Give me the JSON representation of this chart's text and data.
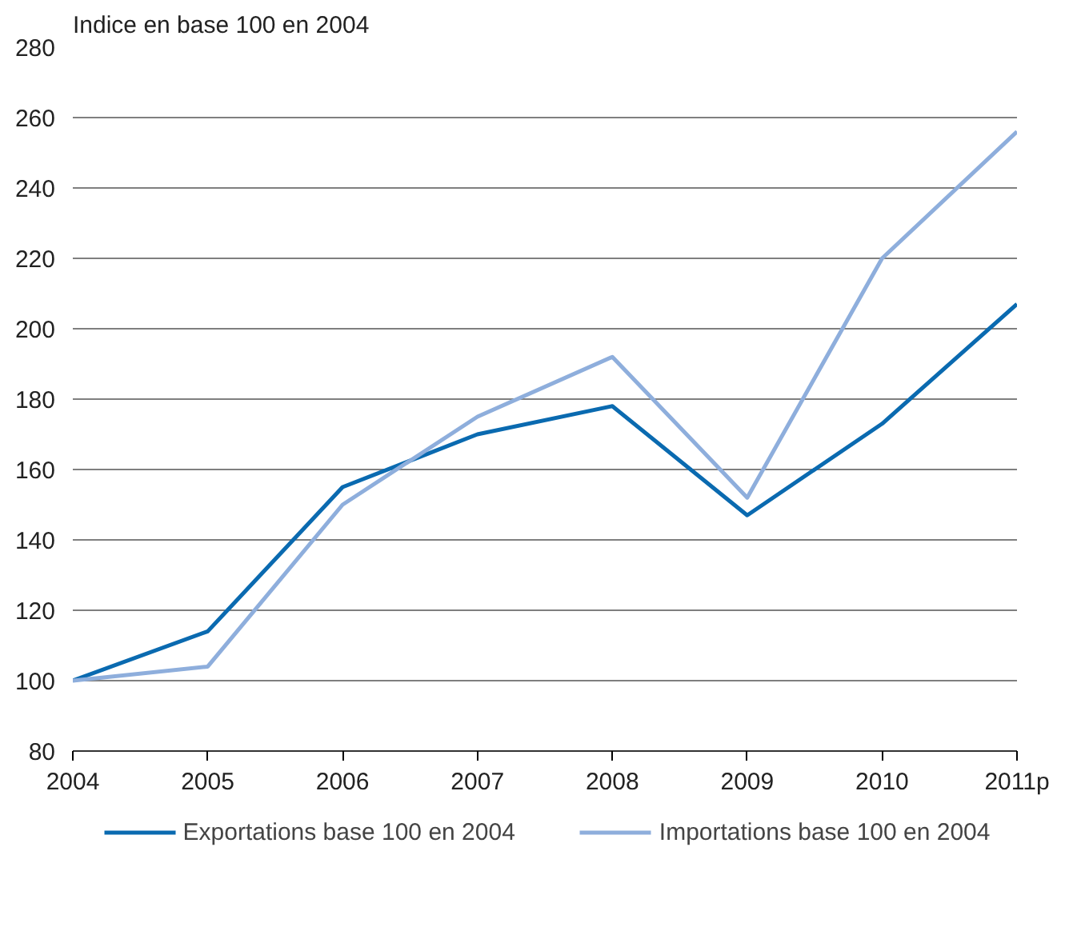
{
  "chart_data": {
    "type": "line",
    "ylabel": "Indice en base 100 en 2004",
    "categories": [
      "2004",
      "2005",
      "2006",
      "2007",
      "2008",
      "2009",
      "2010",
      "2011p"
    ],
    "series": [
      {
        "name": "Exportations base 100 en 2004",
        "color": "#0a6ab0",
        "values": [
          100,
          114,
          155,
          170,
          178,
          147,
          173,
          207
        ]
      },
      {
        "name": "Importations base 100 en 2004",
        "color": "#8eaedc",
        "values": [
          100,
          104,
          150,
          175,
          192,
          152,
          220,
          256
        ]
      }
    ],
    "ylim": [
      80,
      280
    ],
    "yticks": [
      80,
      100,
      120,
      140,
      160,
      180,
      200,
      220,
      240,
      260,
      280
    ],
    "grid": "y",
    "legend": "bottom",
    "marker": "none",
    "line_style": "solid"
  }
}
